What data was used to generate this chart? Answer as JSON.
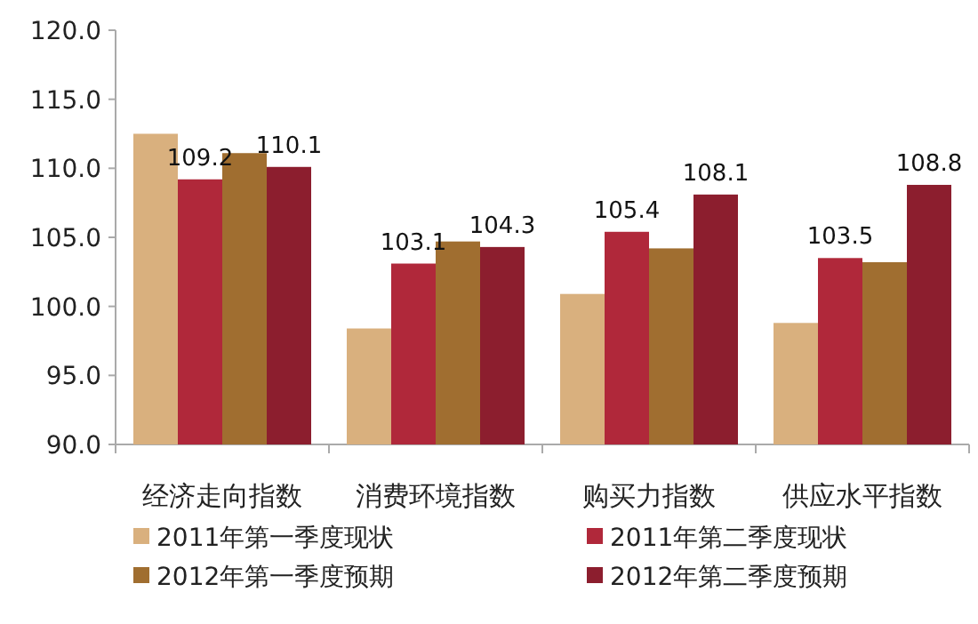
{
  "chart_data": {
    "type": "bar",
    "categories": [
      "经济走向指数",
      "消费环境指数",
      "购买力指数",
      "供应水平指数"
    ],
    "series": [
      {
        "name": "2011年第一季度现状",
        "color": "#d9b07e",
        "values": [
          112.5,
          98.4,
          100.9,
          98.8
        ]
      },
      {
        "name": "2011年第二季度现状",
        "color": "#b0283a",
        "values": [
          109.2,
          103.1,
          105.4,
          103.5
        ],
        "value_labels": [
          "109.2",
          "103.1",
          "105.4",
          "103.5"
        ]
      },
      {
        "name": "2012年第一季度预期",
        "color": "#a06e30",
        "values": [
          111.1,
          104.7,
          104.2,
          103.2
        ]
      },
      {
        "name": "2012年第二季度预期",
        "color": "#8c1e2e",
        "values": [
          110.1,
          104.3,
          108.1,
          108.8
        ],
        "value_labels": [
          "110.1",
          "104.3",
          "108.1",
          "108.8"
        ]
      }
    ],
    "ylim": [
      90,
      120
    ],
    "yticks": [
      {
        "value": 90,
        "label": "90.0"
      },
      {
        "value": 95,
        "label": "95.0"
      },
      {
        "value": 100,
        "label": "100.0"
      },
      {
        "value": 105,
        "label": "105.0"
      },
      {
        "value": 110,
        "label": "110.0"
      },
      {
        "value": 115,
        "label": "115.0"
      },
      {
        "value": 120,
        "label": "120.0"
      }
    ],
    "legend": "bottom",
    "grid": false
  }
}
